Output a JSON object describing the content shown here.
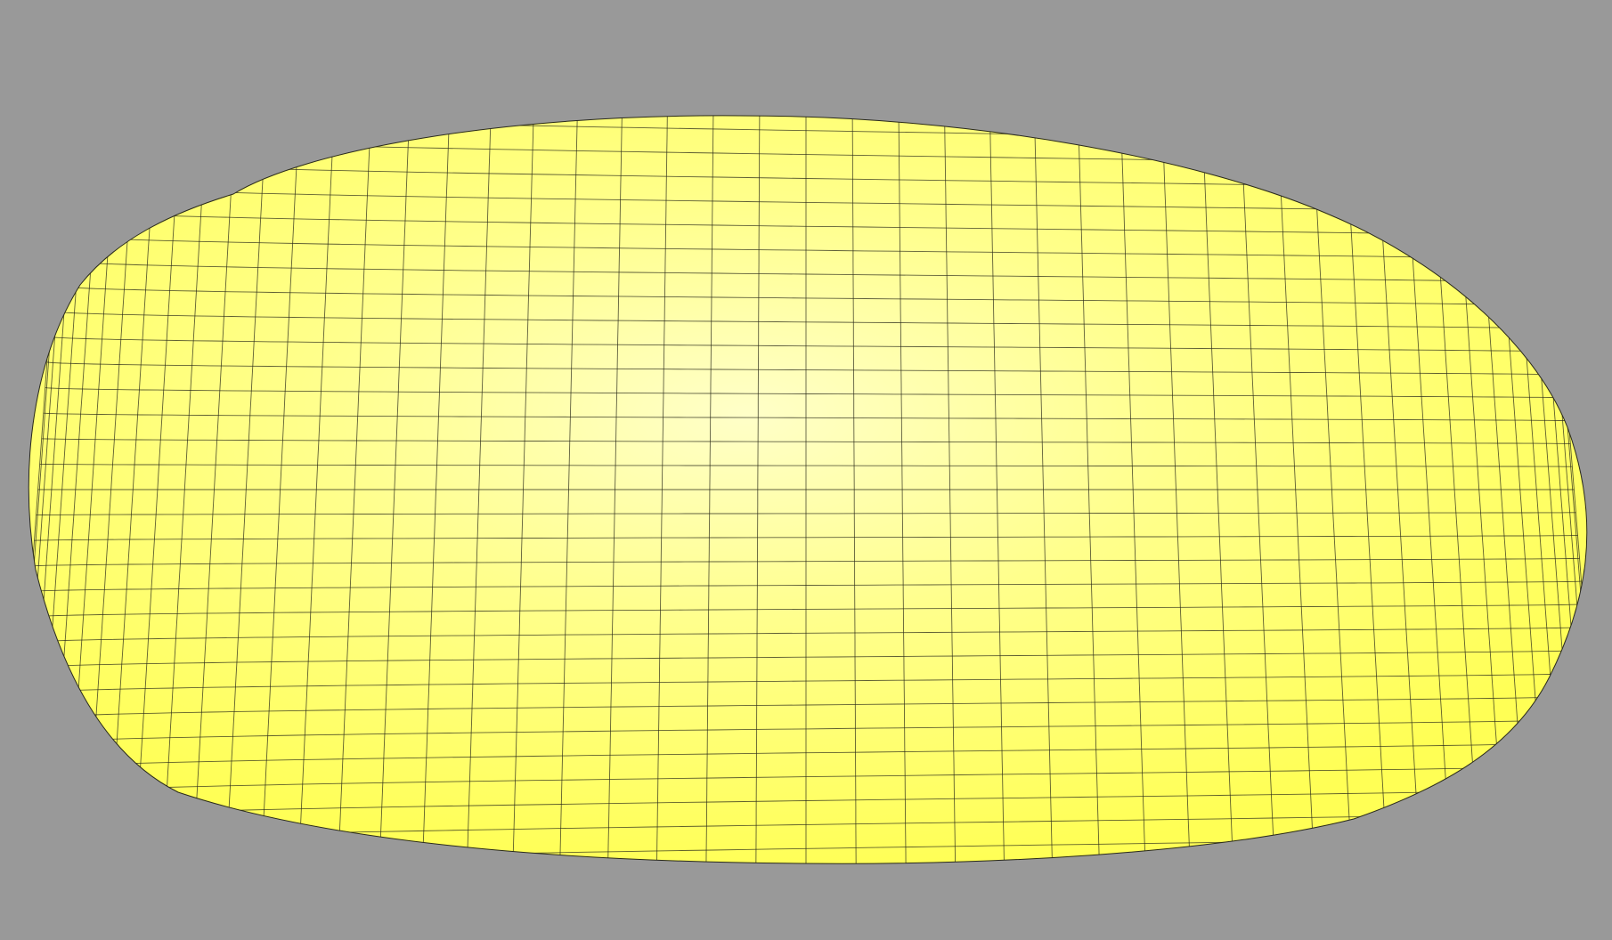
{
  "scene": {
    "background_color": "#999999",
    "object": "mesh-surface",
    "surface_color": "#ffff55",
    "highlight_color": "#ffffc8",
    "wireframe_color": "#2a2a1a",
    "wireframe": true,
    "mesh_columns": 50,
    "mesh_rows": 38
  }
}
